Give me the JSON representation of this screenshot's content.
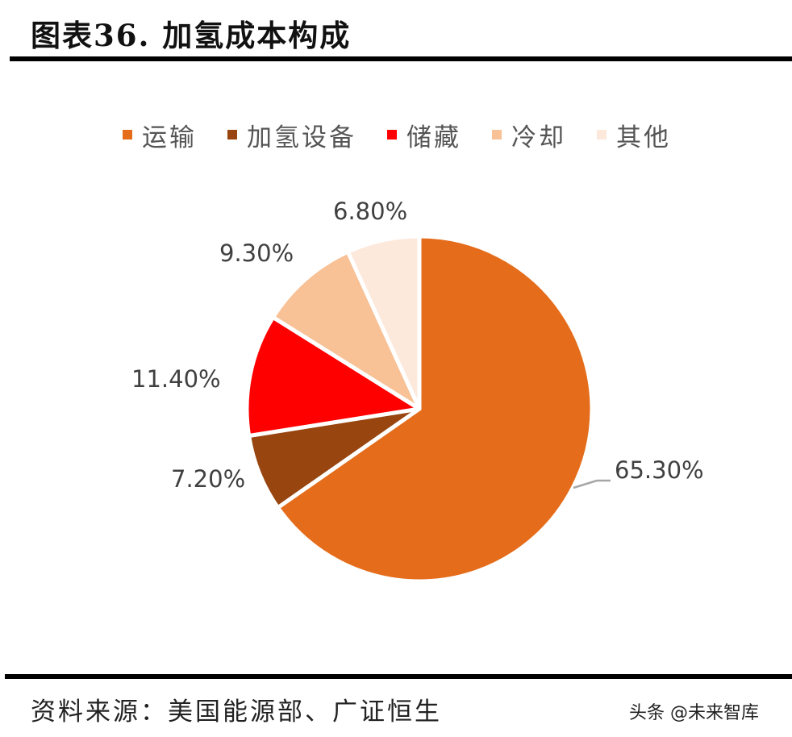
{
  "header": {
    "title": "图表36.  加氢成本构成"
  },
  "chart_data": {
    "type": "pie",
    "title": "加氢成本构成",
    "categories": [
      "运输",
      "加氢设备",
      "储藏",
      "冷却",
      "其他"
    ],
    "values": [
      65.3,
      7.2,
      11.4,
      9.3,
      6.8
    ],
    "labels": [
      "65.30%",
      "7.20%",
      "11.40%",
      "9.30%",
      "6.80%"
    ],
    "colors": [
      "#E46C1A",
      "#984510",
      "#FF0000",
      "#F8C196",
      "#FDE9DC"
    ],
    "legend_position": "top",
    "start_angle": "12 o'clock, clockwise"
  },
  "legend": {
    "items": [
      {
        "label": "运输",
        "color": "#E46C1A"
      },
      {
        "label": "加氢设备",
        "color": "#984510"
      },
      {
        "label": "储藏",
        "color": "#FF0000"
      },
      {
        "label": "冷却",
        "color": "#F8C196"
      },
      {
        "label": "其他",
        "color": "#FDE9DC"
      }
    ]
  },
  "data_labels": {
    "transport": "65.30%",
    "equipment": "7.20%",
    "storage": "11.40%",
    "cooling": "9.30%",
    "other": "6.80%"
  },
  "footer": {
    "source": "资料来源：美国能源部、广证恒生",
    "watermark": "头条 @未来智库"
  }
}
